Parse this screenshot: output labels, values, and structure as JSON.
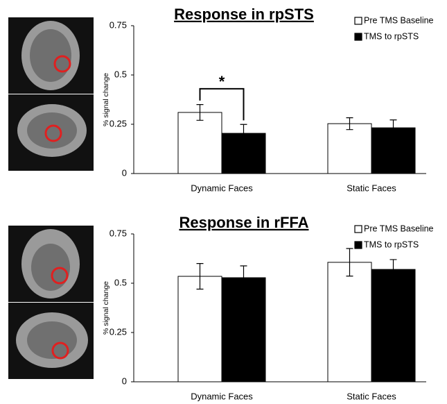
{
  "chart_data": [
    {
      "type": "bar",
      "title": "Response in rpSTS",
      "y_label": "% signal change",
      "categories": [
        "Dynamic Faces",
        "Static Faces"
      ],
      "series": [
        {
          "name": "Pre TMS Baseline",
          "color": "#ffffff",
          "values": [
            0.31,
            0.253
          ],
          "errors": [
            0.04,
            0.03
          ]
        },
        {
          "name": "TMS to rpSTS",
          "color": "#000000",
          "values": [
            0.204,
            0.232
          ],
          "errors": [
            0.045,
            0.04
          ]
        }
      ],
      "ylim": [
        0,
        0.75
      ],
      "yticks": [
        0,
        0.25,
        0.5,
        0.75
      ],
      "legend": "top-right",
      "annotation": "*"
    },
    {
      "type": "bar",
      "title": "Response in rFFA",
      "y_label": "% signal change",
      "categories": [
        "Dynamic Faces",
        "Static Faces"
      ],
      "series": [
        {
          "name": "Pre TMS Baseline",
          "color": "#ffffff",
          "values": [
            0.535,
            0.606
          ],
          "errors": [
            0.065,
            0.07
          ]
        },
        {
          "name": "TMS to rpSTS",
          "color": "#000000",
          "values": [
            0.528,
            0.57
          ],
          "errors": [
            0.06,
            0.05
          ]
        }
      ],
      "ylim": [
        0,
        0.75
      ],
      "yticks": [
        0,
        0.25,
        0.5,
        0.75
      ],
      "legend": "top-right"
    }
  ]
}
